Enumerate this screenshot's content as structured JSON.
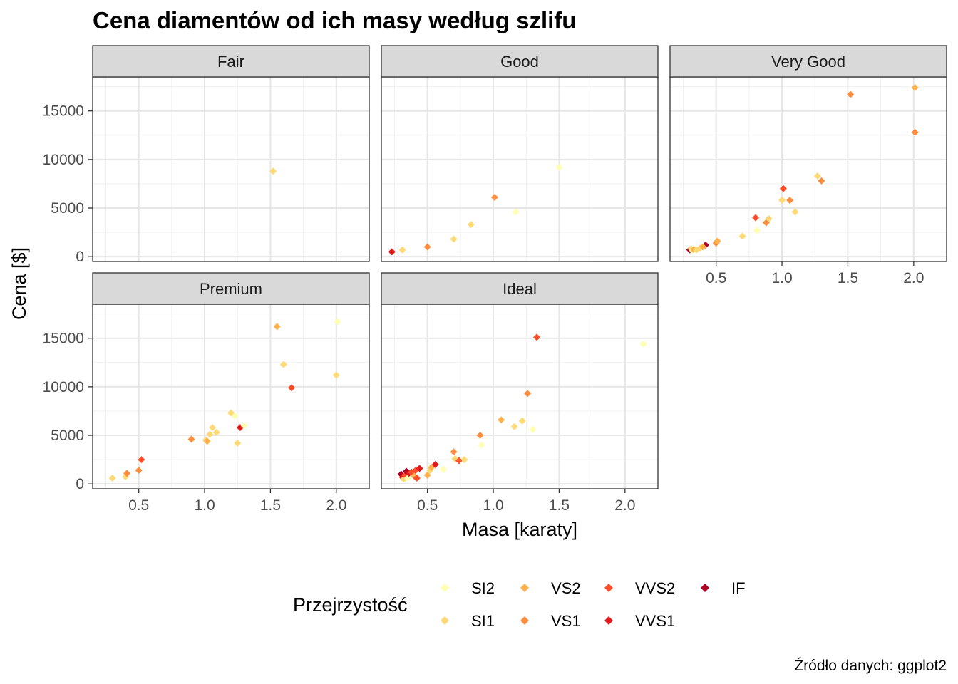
{
  "chart_data": {
    "type": "scatter",
    "title": "Cena diamentów od ich masy według szlifu",
    "xlabel": "Masa [karaty]",
    "ylabel": "Cena [$]",
    "caption": "Źródło danych: ggplot2",
    "xlim": [
      0.15,
      2.25
    ],
    "ylim": [
      -500,
      18500
    ],
    "xticks": [
      0.5,
      1.0,
      1.5,
      2.0
    ],
    "xtick_labels": [
      "0.5",
      "1.0",
      "1.5",
      "2.0"
    ],
    "yticks": [
      0,
      5000,
      10000,
      15000
    ],
    "ytick_labels": [
      "0",
      "5000",
      "10000",
      "15000"
    ],
    "grid": true,
    "legend": {
      "title": "Przejrzystość",
      "position": "bottom",
      "entries": [
        {
          "label": "SI2",
          "color": "#FFFFB2"
        },
        {
          "label": "SI1",
          "color": "#FED976"
        },
        {
          "label": "VS2",
          "color": "#FEB24C"
        },
        {
          "label": "VS1",
          "color": "#FD8D3C"
        },
        {
          "label": "VVS2",
          "color": "#FC4E2A"
        },
        {
          "label": "VVS1",
          "color": "#E31A1C"
        },
        {
          "label": "IF",
          "color": "#B10026"
        }
      ]
    },
    "clarity_colors": {
      "SI2": "#FFFFB2",
      "SI1": "#FED976",
      "VS2": "#FEB24C",
      "VS1": "#FD8D3C",
      "VVS2": "#FC4E2A",
      "VVS1": "#E31A1C",
      "IF": "#B10026"
    },
    "facets": [
      {
        "name": "Fair",
        "points": [
          {
            "x": 1.52,
            "y": 8800,
            "c": "SI1"
          }
        ]
      },
      {
        "name": "Good",
        "points": [
          {
            "x": 0.23,
            "y": 500,
            "c": "VVS1"
          },
          {
            "x": 0.31,
            "y": 700,
            "c": "SI1"
          },
          {
            "x": 0.5,
            "y": 1000,
            "c": "VS1"
          },
          {
            "x": 0.7,
            "y": 1800,
            "c": "SI1"
          },
          {
            "x": 0.83,
            "y": 3300,
            "c": "SI1"
          },
          {
            "x": 1.01,
            "y": 6100,
            "c": "VS1"
          },
          {
            "x": 1.17,
            "y": 4600,
            "c": "SI2"
          },
          {
            "x": 1.5,
            "y": 9200,
            "c": "SI2"
          }
        ]
      },
      {
        "name": "Very Good",
        "points": [
          {
            "x": 0.3,
            "y": 700,
            "c": "IF"
          },
          {
            "x": 0.31,
            "y": 800,
            "c": "SI1"
          },
          {
            "x": 0.32,
            "y": 650,
            "c": "SI2"
          },
          {
            "x": 0.33,
            "y": 750,
            "c": "VS2"
          },
          {
            "x": 0.35,
            "y": 700,
            "c": "SI1"
          },
          {
            "x": 0.38,
            "y": 900,
            "c": "SI1"
          },
          {
            "x": 0.42,
            "y": 1200,
            "c": "IF"
          },
          {
            "x": 0.4,
            "y": 1000,
            "c": "VS2"
          },
          {
            "x": 0.5,
            "y": 1400,
            "c": "VS1"
          },
          {
            "x": 0.51,
            "y": 1600,
            "c": "VS2"
          },
          {
            "x": 0.7,
            "y": 2100,
            "c": "SI1"
          },
          {
            "x": 0.81,
            "y": 2700,
            "c": "SI2"
          },
          {
            "x": 0.8,
            "y": 4000,
            "c": "VVS2"
          },
          {
            "x": 0.88,
            "y": 3500,
            "c": "VS1"
          },
          {
            "x": 0.9,
            "y": 3900,
            "c": "SI1"
          },
          {
            "x": 1.0,
            "y": 5800,
            "c": "SI1"
          },
          {
            "x": 1.01,
            "y": 7000,
            "c": "VVS2"
          },
          {
            "x": 1.06,
            "y": 5800,
            "c": "VS1"
          },
          {
            "x": 1.1,
            "y": 4600,
            "c": "SI1"
          },
          {
            "x": 1.27,
            "y": 8300,
            "c": "SI1"
          },
          {
            "x": 1.3,
            "y": 7800,
            "c": "VS1"
          },
          {
            "x": 1.52,
            "y": 16700,
            "c": "VS1"
          },
          {
            "x": 2.01,
            "y": 17400,
            "c": "VS2"
          },
          {
            "x": 2.01,
            "y": 12800,
            "c": "VS1"
          }
        ]
      },
      {
        "name": "Premium",
        "points": [
          {
            "x": 0.3,
            "y": 600,
            "c": "SI1"
          },
          {
            "x": 0.4,
            "y": 750,
            "c": "SI1"
          },
          {
            "x": 0.41,
            "y": 1100,
            "c": "VS1"
          },
          {
            "x": 0.5,
            "y": 1400,
            "c": "VS1"
          },
          {
            "x": 0.52,
            "y": 2500,
            "c": "VVS2"
          },
          {
            "x": 0.9,
            "y": 4600,
            "c": "VS1"
          },
          {
            "x": 1.01,
            "y": 4500,
            "c": "SI1"
          },
          {
            "x": 1.02,
            "y": 4400,
            "c": "VS2"
          },
          {
            "x": 1.04,
            "y": 5100,
            "c": "SI1"
          },
          {
            "x": 1.06,
            "y": 5800,
            "c": "SI1"
          },
          {
            "x": 1.09,
            "y": 5300,
            "c": "SI1"
          },
          {
            "x": 1.2,
            "y": 7300,
            "c": "SI1"
          },
          {
            "x": 1.23,
            "y": 7000,
            "c": "SI2"
          },
          {
            "x": 1.25,
            "y": 4200,
            "c": "SI1"
          },
          {
            "x": 1.27,
            "y": 5800,
            "c": "VVS1"
          },
          {
            "x": 1.3,
            "y": 6000,
            "c": "SI2"
          },
          {
            "x": 1.55,
            "y": 16200,
            "c": "VS2"
          },
          {
            "x": 1.6,
            "y": 12300,
            "c": "SI1"
          },
          {
            "x": 1.66,
            "y": 9900,
            "c": "VVS2"
          },
          {
            "x": 2.0,
            "y": 11200,
            "c": "SI1"
          },
          {
            "x": 2.01,
            "y": 16700,
            "c": "SI2"
          }
        ]
      },
      {
        "name": "Ideal",
        "points": [
          {
            "x": 0.3,
            "y": 1000,
            "c": "IF"
          },
          {
            "x": 0.31,
            "y": 700,
            "c": "VVS1"
          },
          {
            "x": 0.32,
            "y": 500,
            "c": "SI1"
          },
          {
            "x": 0.33,
            "y": 900,
            "c": "VVS2"
          },
          {
            "x": 0.34,
            "y": 1300,
            "c": "IF"
          },
          {
            "x": 0.35,
            "y": 600,
            "c": "SI2"
          },
          {
            "x": 0.36,
            "y": 1100,
            "c": "VVS1"
          },
          {
            "x": 0.38,
            "y": 1200,
            "c": "VVS2"
          },
          {
            "x": 0.4,
            "y": 800,
            "c": "VS2"
          },
          {
            "x": 0.41,
            "y": 1400,
            "c": "VVS2"
          },
          {
            "x": 0.42,
            "y": 600,
            "c": "VVS2"
          },
          {
            "x": 0.44,
            "y": 1600,
            "c": "VVS1"
          },
          {
            "x": 0.5,
            "y": 900,
            "c": "VS2"
          },
          {
            "x": 0.52,
            "y": 1400,
            "c": "SI1"
          },
          {
            "x": 0.53,
            "y": 1700,
            "c": "VS2"
          },
          {
            "x": 0.56,
            "y": 2000,
            "c": "VVS1"
          },
          {
            "x": 0.62,
            "y": 1500,
            "c": "SI2"
          },
          {
            "x": 0.7,
            "y": 3300,
            "c": "VS1"
          },
          {
            "x": 0.71,
            "y": 2600,
            "c": "SI1"
          },
          {
            "x": 0.74,
            "y": 2400,
            "c": "VVS2"
          },
          {
            "x": 0.78,
            "y": 2500,
            "c": "SI1"
          },
          {
            "x": 0.9,
            "y": 5000,
            "c": "VS1"
          },
          {
            "x": 0.91,
            "y": 4000,
            "c": "SI2"
          },
          {
            "x": 1.06,
            "y": 6600,
            "c": "VS2"
          },
          {
            "x": 1.16,
            "y": 5900,
            "c": "SI1"
          },
          {
            "x": 1.22,
            "y": 6500,
            "c": "SI1"
          },
          {
            "x": 1.26,
            "y": 9300,
            "c": "VS1"
          },
          {
            "x": 1.3,
            "y": 5600,
            "c": "SI2"
          },
          {
            "x": 1.33,
            "y": 15100,
            "c": "VVS2"
          },
          {
            "x": 2.14,
            "y": 14400,
            "c": "SI2"
          }
        ]
      }
    ]
  }
}
